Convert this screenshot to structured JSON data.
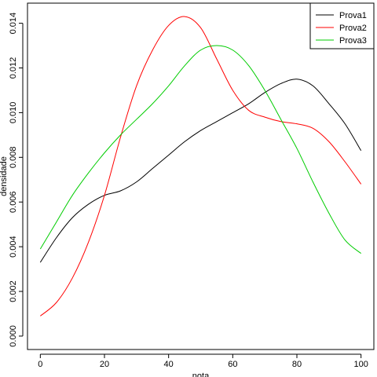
{
  "chart_data": {
    "type": "line",
    "title": "",
    "xlabel": "nota",
    "ylabel": "densidade",
    "xlim": [
      -4,
      104
    ],
    "ylim": [
      -0.0006,
      0.0149
    ],
    "x_ticks": [
      0,
      20,
      40,
      60,
      80,
      100
    ],
    "x_tick_labels": [
      "0",
      "20",
      "40",
      "60",
      "80",
      "100"
    ],
    "y_ticks": [
      0.0,
      0.002,
      0.004,
      0.006,
      0.008,
      0.01,
      0.012,
      0.014
    ],
    "y_tick_labels": [
      "0.000",
      "0.002",
      "0.004",
      "0.006",
      "0.008",
      "0.010",
      "0.012",
      "0.014"
    ],
    "grid": false,
    "legend_position": "top-right",
    "series": [
      {
        "name": "Prova1",
        "color": "#000000",
        "x": [
          0,
          5,
          10,
          15,
          20,
          25,
          30,
          35,
          40,
          45,
          50,
          55,
          60,
          65,
          70,
          75,
          80,
          85,
          90,
          95,
          100
        ],
        "y": [
          0.0033,
          0.0044,
          0.0053,
          0.0059,
          0.0063,
          0.0065,
          0.0069,
          0.0075,
          0.0081,
          0.0087,
          0.0092,
          0.0096,
          0.01,
          0.0104,
          0.0109,
          0.0113,
          0.0115,
          0.0112,
          0.0104,
          0.0095,
          0.0083
        ]
      },
      {
        "name": "Prova2",
        "color": "#ff0000",
        "x": [
          0,
          5,
          10,
          15,
          20,
          25,
          30,
          35,
          40,
          45,
          50,
          55,
          60,
          65,
          70,
          75,
          80,
          85,
          90,
          95,
          100
        ],
        "y": [
          0.0009,
          0.0015,
          0.0026,
          0.0042,
          0.0063,
          0.0089,
          0.0112,
          0.0128,
          0.0139,
          0.0143,
          0.0138,
          0.0124,
          0.011,
          0.0101,
          0.0098,
          0.0096,
          0.0095,
          0.0093,
          0.0087,
          0.0078,
          0.0068
        ]
      },
      {
        "name": "Prova3",
        "color": "#00cc00",
        "x": [
          0,
          5,
          10,
          15,
          20,
          25,
          30,
          35,
          40,
          45,
          50,
          55,
          60,
          65,
          70,
          75,
          80,
          85,
          90,
          95,
          100
        ],
        "y": [
          0.0039,
          0.0051,
          0.0063,
          0.0073,
          0.0082,
          0.009,
          0.0097,
          0.0104,
          0.0112,
          0.0121,
          0.0128,
          0.013,
          0.0128,
          0.0121,
          0.011,
          0.0097,
          0.0084,
          0.0069,
          0.0055,
          0.0043,
          0.0037
        ]
      }
    ]
  }
}
